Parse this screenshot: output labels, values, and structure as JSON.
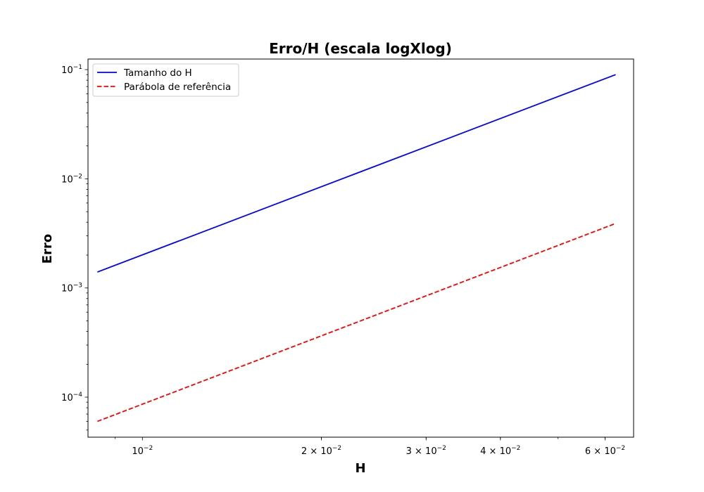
{
  "chart_data": {
    "type": "line",
    "title": "Erro/H (escala logXlog)",
    "xlabel": "H",
    "ylabel": "Erro",
    "xscale": "log",
    "yscale": "log",
    "xlim": [
      0.0081,
      0.067
    ],
    "ylim": [
      4.3e-05,
      0.125
    ],
    "xticks": [
      {
        "value": 0.01,
        "label": "10",
        "sup": "−2",
        "style": "power"
      },
      {
        "value": 0.02,
        "label": "2 × 10",
        "sup": "−2",
        "style": "mult"
      },
      {
        "value": 0.03,
        "label": "3 × 10",
        "sup": "−2",
        "style": "mult"
      },
      {
        "value": 0.04,
        "label": "4 × 10",
        "sup": "−2",
        "style": "mult"
      },
      {
        "value": 0.06,
        "label": "6 × 10",
        "sup": "−2",
        "style": "mult"
      }
    ],
    "yticks": [
      {
        "value": 0.1,
        "label": "10",
        "sup": "−1"
      },
      {
        "value": 0.01,
        "label": "10",
        "sup": "−2"
      },
      {
        "value": 0.001,
        "label": "10",
        "sup": "−3"
      },
      {
        "value": 0.0001,
        "label": "10",
        "sup": "−4"
      }
    ],
    "grid": false,
    "legend_position": "upper-left",
    "x": [
      0.0084,
      0.0625
    ],
    "series": [
      {
        "name": "Tamanho do H",
        "values": [
          0.0014,
          0.09
        ],
        "color": "#0000ff",
        "linestyle": "solid"
      },
      {
        "name": "Parábola de referência",
        "values": [
          6e-05,
          0.0039
        ],
        "color": "#ff0000",
        "linestyle": "dashed"
      }
    ]
  }
}
